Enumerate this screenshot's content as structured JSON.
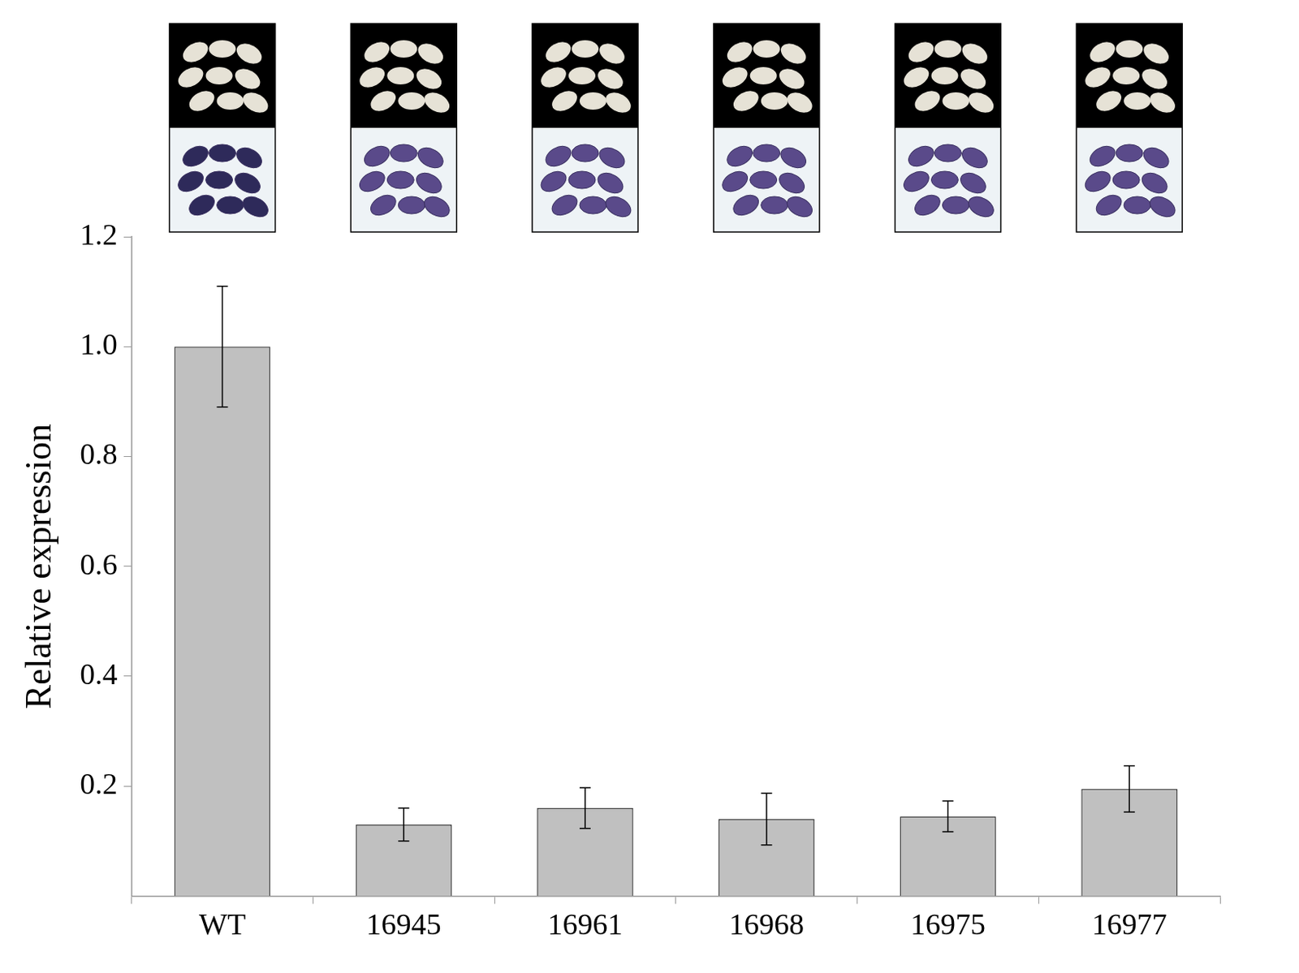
{
  "chart_data": {
    "type": "bar",
    "y_label": "Relative expression",
    "categories": [
      "WT",
      "16945",
      "16961",
      "16968",
      "16975",
      "16977"
    ],
    "values": [
      1.0,
      0.13,
      0.16,
      0.14,
      0.145,
      0.195
    ],
    "errors": [
      0.11,
      0.03,
      0.037,
      0.047,
      0.028,
      0.042
    ],
    "color": "#c0c0c0",
    "ylim": [
      0,
      1.2
    ],
    "yticks": [
      0.2,
      0.4,
      0.6,
      0.8,
      {
        "value": 1,
        "label": "1.0"
      },
      1.2
    ],
    "grid": false
  }
}
